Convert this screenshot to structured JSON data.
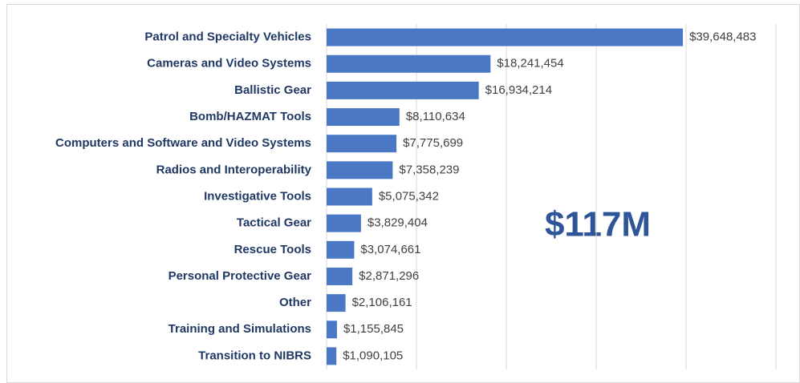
{
  "chart_data": {
    "type": "bar",
    "orientation": "horizontal",
    "categories": [
      "Patrol and Specialty Vehicles",
      "Cameras and Video Systems",
      "Ballistic Gear",
      "Bomb/HAZMAT Tools",
      "Computers and Software and Video Systems",
      "Radios and Interoperability",
      "Investigative Tools",
      "Tactical Gear",
      "Rescue Tools",
      "Personal Protective Gear",
      "Other",
      "Training and Simulations",
      "Transition to NIBRS"
    ],
    "values": [
      39648483,
      18241454,
      16934214,
      8110634,
      7775699,
      7358239,
      5075342,
      3829404,
      3074661,
      2871296,
      2106161,
      1155845,
      1090105
    ],
    "value_labels": [
      "$39,648,483",
      "$18,241,454",
      "$16,934,214",
      "$8,110,634",
      "$7,775,699",
      "$7,358,239",
      "$5,075,342",
      "$3,829,404",
      "$3,074,661",
      "$2,871,296",
      "$2,106,161",
      "$1,155,845",
      "$1,090,105"
    ],
    "color": "#4a78c4",
    "xlim": [
      0,
      50000000
    ],
    "xticks": [
      0,
      10000000,
      20000000,
      30000000,
      40000000,
      50000000
    ],
    "grid": true,
    "annotation": "$117M"
  }
}
